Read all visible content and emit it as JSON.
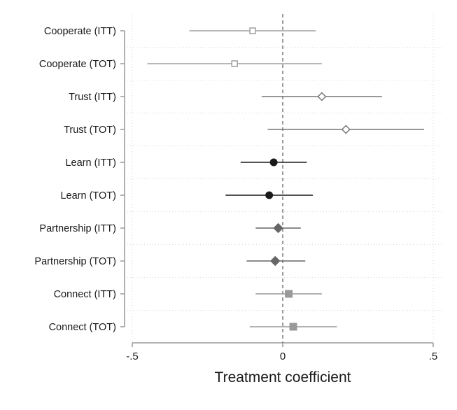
{
  "chart_data": {
    "type": "scatter",
    "subtype": "coefficient-plot",
    "title": "",
    "xlabel": "Treatment coefficient",
    "ylabel": "",
    "xlim": [
      -0.5,
      0.5
    ],
    "x_ticks": [
      -0.5,
      0,
      0.5
    ],
    "x_tick_labels": [
      "-.5",
      "0",
      ".5"
    ],
    "reference_line": {
      "x": 0,
      "style": "dashed",
      "color": "#666666"
    },
    "grid": {
      "vertical": true,
      "horizontal": true,
      "style": "dotted"
    },
    "legend": "none",
    "series": [
      {
        "label": "Cooperate (ITT)",
        "estimate": -0.1,
        "ci_low": -0.31,
        "ci_high": 0.11,
        "marker": "square-hollow",
        "color": "#a0a0a0"
      },
      {
        "label": "Cooperate (TOT)",
        "estimate": -0.16,
        "ci_low": -0.45,
        "ci_high": 0.13,
        "marker": "square-hollow",
        "color": "#a0a0a0"
      },
      {
        "label": "Trust (ITT)",
        "estimate": 0.13,
        "ci_low": -0.07,
        "ci_high": 0.33,
        "marker": "diamond-hollow",
        "color": "#777777"
      },
      {
        "label": "Trust (TOT)",
        "estimate": 0.21,
        "ci_low": -0.05,
        "ci_high": 0.47,
        "marker": "diamond-hollow",
        "color": "#777777"
      },
      {
        "label": "Learn (ITT)",
        "estimate": -0.03,
        "ci_low": -0.14,
        "ci_high": 0.08,
        "marker": "circle-filled",
        "color": "#1a1a1a"
      },
      {
        "label": "Learn (TOT)",
        "estimate": -0.045,
        "ci_low": -0.19,
        "ci_high": 0.1,
        "marker": "circle-filled",
        "color": "#1a1a1a"
      },
      {
        "label": "Partnership (ITT)",
        "estimate": -0.015,
        "ci_low": -0.09,
        "ci_high": 0.06,
        "marker": "diamond-filled",
        "color": "#666666"
      },
      {
        "label": "Partnership (TOT)",
        "estimate": -0.025,
        "ci_low": -0.12,
        "ci_high": 0.075,
        "marker": "diamond-filled",
        "color": "#666666"
      },
      {
        "label": "Connect (ITT)",
        "estimate": 0.02,
        "ci_low": -0.09,
        "ci_high": 0.13,
        "marker": "square-filled",
        "color": "#999999"
      },
      {
        "label": "Connect (TOT)",
        "estimate": 0.035,
        "ci_low": -0.11,
        "ci_high": 0.18,
        "marker": "square-filled",
        "color": "#999999"
      }
    ]
  }
}
